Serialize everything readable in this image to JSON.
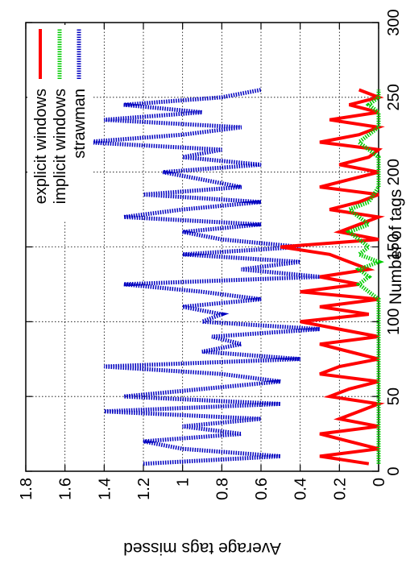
{
  "chart_data": {
    "type": "line",
    "title": "",
    "xlabel": "Number of tags",
    "ylabel": "Average tags missed",
    "xlim": [
      0,
      300
    ],
    "ylim": [
      0,
      1.8
    ],
    "x_ticks": [
      0,
      50,
      100,
      150,
      200,
      250,
      300
    ],
    "y_ticks": [
      0,
      0.2,
      0.4,
      0.6,
      0.8,
      1,
      1.2,
      1.4,
      1.6,
      1.8
    ],
    "x_tick_labels": [
      "0",
      "50",
      "100",
      "150",
      "200",
      "250",
      "300"
    ],
    "y_tick_labels": [
      "0",
      "0.2",
      "0.4",
      "0.6",
      "0.8",
      "1",
      "1.2",
      "1.4",
      "1.6",
      "1.8"
    ],
    "grid": true,
    "legend_position": "top-right",
    "series": [
      {
        "name": "explicit windows",
        "color": "#ff0000",
        "style": "solid",
        "x": [
          5,
          10,
          15,
          20,
          25,
          30,
          35,
          40,
          45,
          50,
          55,
          60,
          65,
          70,
          75,
          80,
          85,
          90,
          95,
          100,
          105,
          110,
          115,
          120,
          125,
          130,
          135,
          140,
          145,
          150,
          155,
          160,
          165,
          170,
          175,
          180,
          185,
          190,
          195,
          200,
          205,
          210,
          215,
          220,
          225,
          230,
          235,
          240,
          245,
          250,
          255
        ],
        "y": [
          0.05,
          0.3,
          0.0,
          0.15,
          0.3,
          0.0,
          0.2,
          0.1,
          0.0,
          0.25,
          0.15,
          0.0,
          0.3,
          0.2,
          0.0,
          0.15,
          0.3,
          0.0,
          0.2,
          0.4,
          0.05,
          0.3,
          0.0,
          0.4,
          0.1,
          0.3,
          0.05,
          0.15,
          0.25,
          0.5,
          0.0,
          0.2,
          0.1,
          0.0,
          0.25,
          0.1,
          0.0,
          0.3,
          0.15,
          0.0,
          0.2,
          0.05,
          0.0,
          0.3,
          0.1,
          0.0,
          0.25,
          0.0,
          0.15,
          0.0,
          0.1
        ]
      },
      {
        "name": "implicit windows",
        "color": "#00cc00",
        "style": "dotted",
        "x": [
          5,
          10,
          15,
          20,
          25,
          30,
          40,
          50,
          60,
          70,
          80,
          90,
          100,
          110,
          115,
          120,
          125,
          130,
          135,
          140,
          145,
          150,
          155,
          160,
          165,
          170,
          175,
          180,
          190,
          200,
          210,
          215,
          220,
          225,
          230,
          240,
          245,
          250,
          255
        ],
        "y": [
          0.0,
          0.0,
          0.0,
          0.0,
          0.0,
          0.0,
          0.0,
          0.0,
          0.0,
          0.0,
          0.0,
          0.0,
          0.0,
          0.0,
          0.0,
          0.05,
          0.1,
          0.05,
          0.1,
          0.0,
          0.1,
          0.05,
          0.1,
          0.15,
          0.05,
          0.1,
          0.15,
          0.05,
          0.0,
          0.0,
          0.0,
          0.05,
          0.1,
          0.05,
          0.0,
          0.0,
          0.05,
          0.0,
          0.0
        ]
      },
      {
        "name": "strawman",
        "color": "#0000c0",
        "style": "dotted",
        "x": [
          5,
          10,
          15,
          20,
          25,
          30,
          35,
          40,
          45,
          50,
          55,
          60,
          65,
          70,
          75,
          80,
          85,
          90,
          95,
          100,
          105,
          110,
          115,
          120,
          125,
          130,
          135,
          140,
          145,
          150,
          155,
          160,
          165,
          170,
          175,
          180,
          185,
          190,
          195,
          200,
          205,
          210,
          215,
          220,
          225,
          230,
          235,
          240,
          245,
          250,
          255
        ],
        "y": [
          1.2,
          0.5,
          1.0,
          1.2,
          0.7,
          1.0,
          0.6,
          1.4,
          0.5,
          1.3,
          0.9,
          0.5,
          0.8,
          1.4,
          0.4,
          0.9,
          0.7,
          0.85,
          0.3,
          0.9,
          0.8,
          1.0,
          0.6,
          0.9,
          1.3,
          0.3,
          0.7,
          0.4,
          1.0,
          0.4,
          0.8,
          1.0,
          0.6,
          1.3,
          1.0,
          0.6,
          1.2,
          0.7,
          0.9,
          1.1,
          0.6,
          1.0,
          0.8,
          1.5,
          1.0,
          0.7,
          1.4,
          0.9,
          1.3,
          0.8,
          0.6
        ]
      }
    ]
  }
}
